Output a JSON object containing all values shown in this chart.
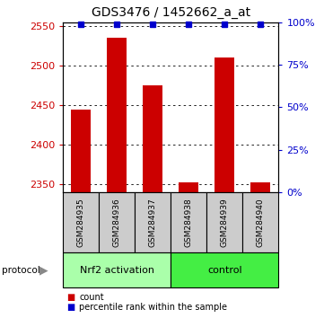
{
  "title": "GDS3476 / 1452662_a_at",
  "samples": [
    "GSM284935",
    "GSM284936",
    "GSM284937",
    "GSM284938",
    "GSM284939",
    "GSM284940"
  ],
  "counts": [
    2445,
    2535,
    2475,
    2353,
    2510,
    2353
  ],
  "percentiles": [
    99,
    99,
    99,
    99,
    99,
    99
  ],
  "ylim_left": [
    2340,
    2555
  ],
  "ylim_right": [
    0,
    100
  ],
  "yticks_left": [
    2350,
    2400,
    2450,
    2500,
    2550
  ],
  "yticks_right": [
    0,
    25,
    50,
    75,
    100
  ],
  "groups": [
    {
      "label": "Nrf2 activation",
      "indices": [
        0,
        1,
        2
      ],
      "color": "#aaffaa"
    },
    {
      "label": "control",
      "indices": [
        3,
        4,
        5
      ],
      "color": "#44ee44"
    }
  ],
  "bar_color": "#cc0000",
  "dot_color": "#0000cc",
  "bar_width": 0.55,
  "left_axis_color": "#cc0000",
  "right_axis_color": "#0000cc",
  "grid_color": "#555555",
  "legend_count_color": "#cc0000",
  "legend_pct_color": "#0000cc",
  "sample_box_color": "#cccccc",
  "group_box_color_1": "#aaffaa",
  "group_box_color_2": "#44ee44"
}
